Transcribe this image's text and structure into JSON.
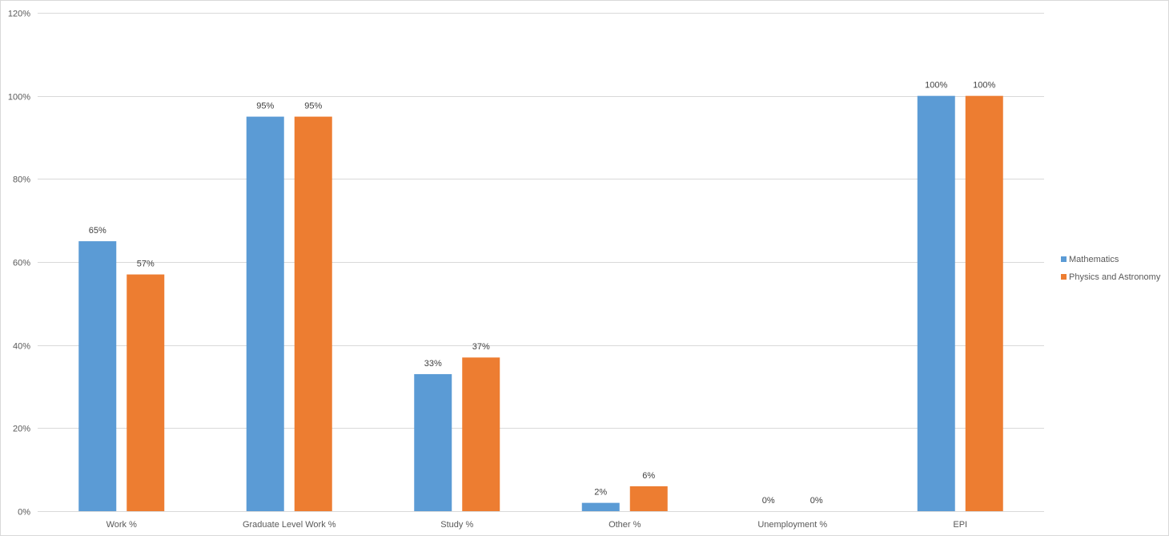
{
  "chart_data": {
    "type": "bar",
    "categories": [
      "Work %",
      "Graduate Level Work %",
      "Study %",
      "Other %",
      "Unemployment %",
      "EPI"
    ],
    "series": [
      {
        "name": "Mathematics",
        "color": "#5B9BD5",
        "values": [
          65,
          95,
          33,
          2,
          0,
          100
        ],
        "labels": [
          "65%",
          "95%",
          "33%",
          "2%",
          "0%",
          "100%"
        ]
      },
      {
        "name": "Physics and Astronomy",
        "color": "#ED7D31",
        "values": [
          57,
          95,
          37,
          6,
          0,
          100
        ],
        "labels": [
          "57%",
          "95%",
          "37%",
          "6%",
          "0%",
          "100%"
        ]
      }
    ],
    "ylim": [
      0,
      120
    ],
    "yticks": [
      0,
      20,
      40,
      60,
      80,
      100,
      120
    ],
    "ytick_labels": [
      "0%",
      "20%",
      "40%",
      "60%",
      "80%",
      "100%",
      "120%"
    ],
    "grid": true,
    "legend_position": "right",
    "gridline_color": "#d9d9d9"
  }
}
